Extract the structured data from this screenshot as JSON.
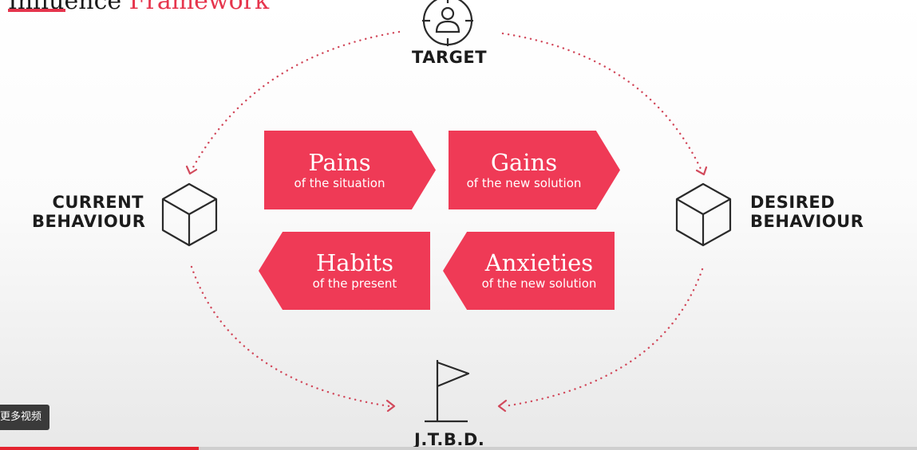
{
  "title": {
    "part1": "Influence ",
    "part2": "Framework"
  },
  "nodes": {
    "target": "TARGET",
    "current": [
      "CURRENT",
      "BEHAVIOUR"
    ],
    "desired": [
      "DESIRED",
      "BEHAVIOUR"
    ],
    "jtbd": "J.T.B.D."
  },
  "cards": [
    {
      "title": "Pains",
      "sub": "of the situation"
    },
    {
      "title": "Gains",
      "sub": "of the new solution"
    },
    {
      "title": "Habits",
      "sub": "of the present"
    },
    {
      "title": "Anxieties",
      "sub": "of the new solution"
    }
  ],
  "icons": {
    "target": "target-person-icon",
    "current": "cube-icon",
    "desired": "cube-icon",
    "jtbd": "flag-icon"
  },
  "colors": {
    "accent": "#ef3a56",
    "dots": "#d24a5c",
    "text": "#1c1c1c"
  },
  "player": {
    "more_videos": "更多视频",
    "progress": 0.217
  }
}
